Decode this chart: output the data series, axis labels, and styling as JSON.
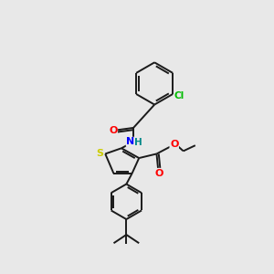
{
  "background_color": "#e8e8e8",
  "bond_color": "#1a1a1a",
  "atom_colors": {
    "S": "#cccc00",
    "N": "#0000ff",
    "O": "#ff0000",
    "Cl": "#00bb00",
    "H": "#008888",
    "C": "#1a1a1a"
  },
  "figsize": [
    3.0,
    3.0
  ],
  "dpi": 100,
  "lw": 1.4
}
